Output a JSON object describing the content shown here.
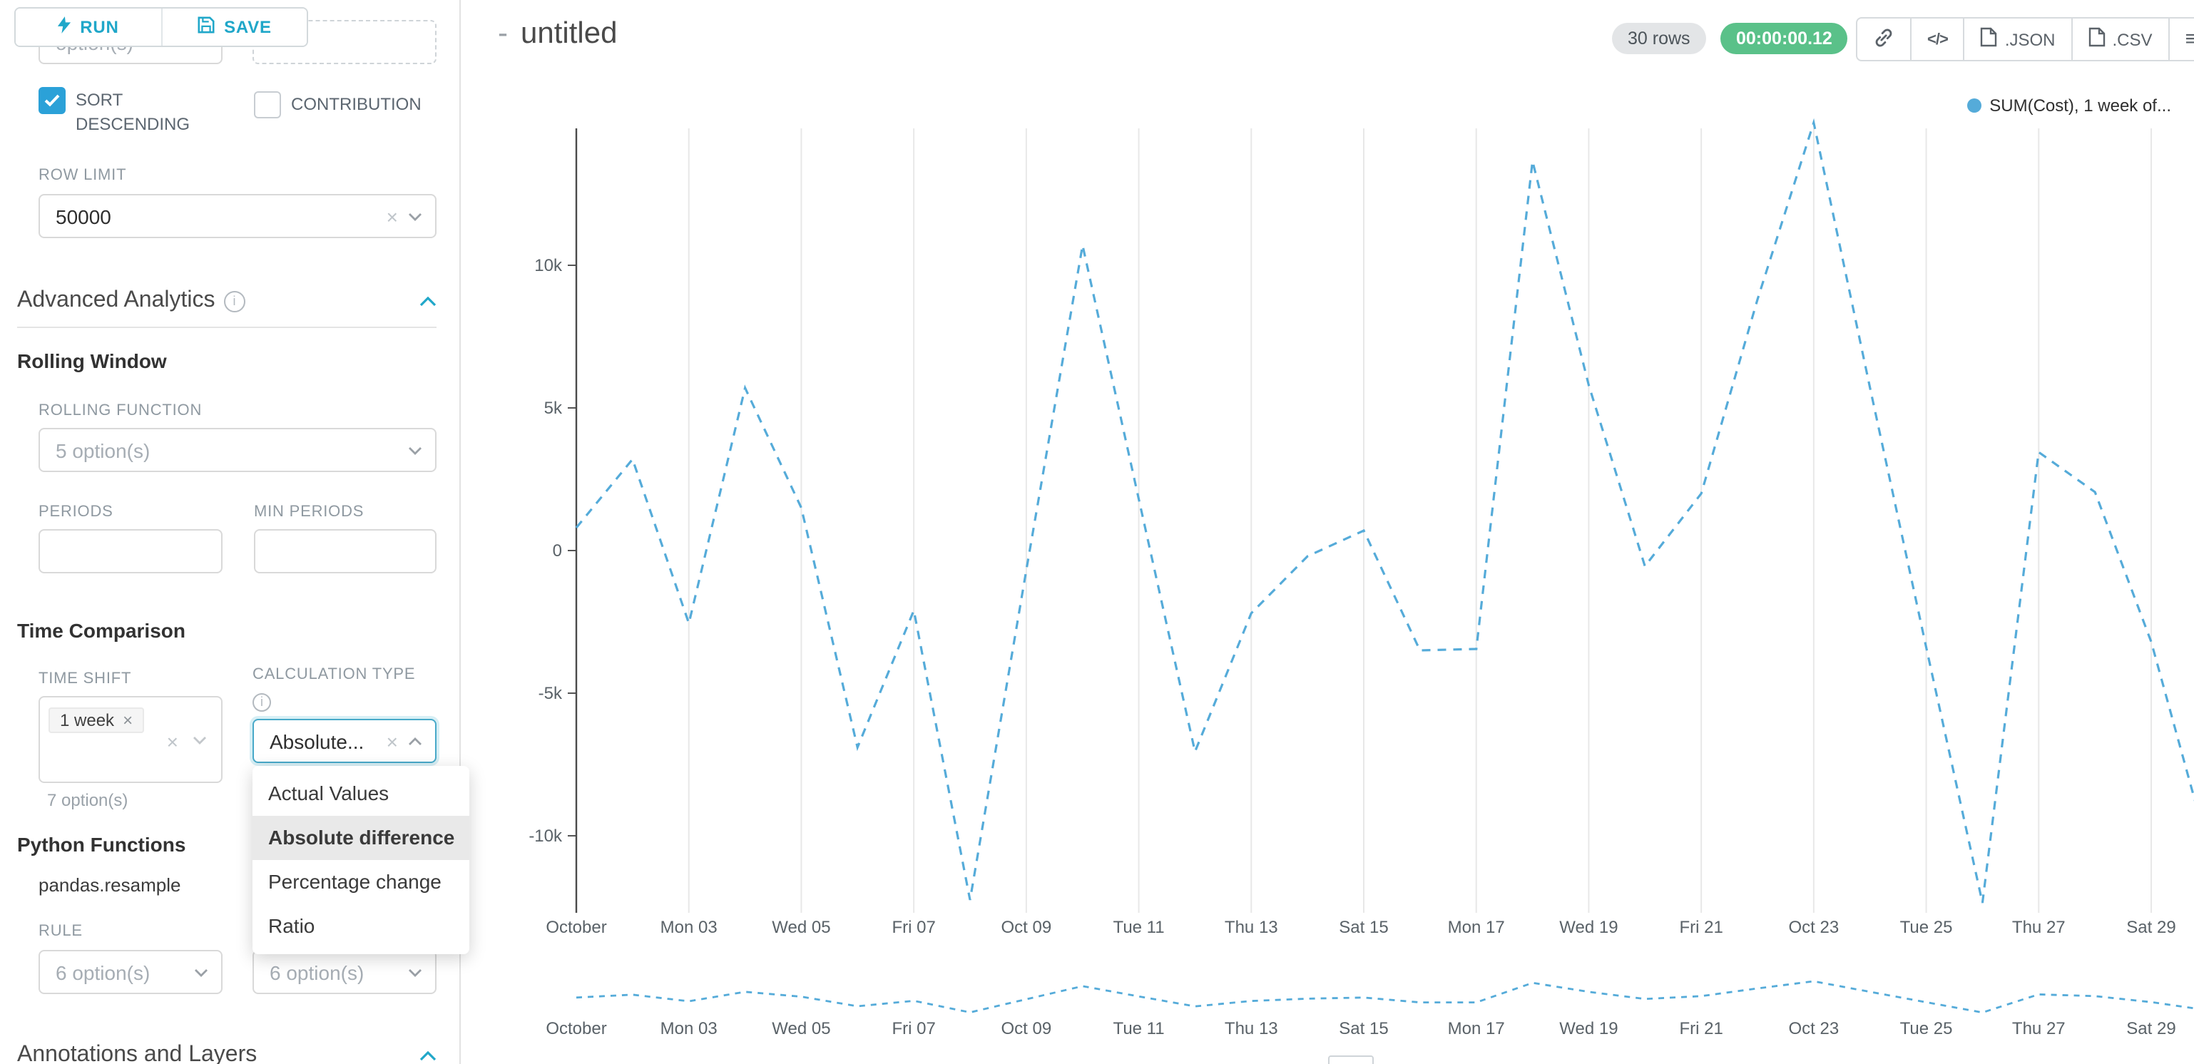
{
  "icons": {
    "menu": "≡",
    "code": "</>",
    "clear": "×"
  },
  "header": {
    "run": "RUN",
    "save": "SAVE"
  },
  "sidebar": {
    "clipped_option_text": "option(s)",
    "sort_descending_label": "SORT DESCENDING",
    "sort_descending_checked": true,
    "contribution_label": "CONTRIBUTION",
    "contribution_checked": false,
    "row_limit_label": "ROW LIMIT",
    "row_limit_value": "50000",
    "advanced_analytics_title": "Advanced Analytics",
    "rolling_window_title": "Rolling Window",
    "rolling_function_label": "ROLLING FUNCTION",
    "rolling_function_placeholder": "5 option(s)",
    "periods_label": "PERIODS",
    "min_periods_label": "MIN PERIODS",
    "time_comparison_title": "Time Comparison",
    "time_shift_label": "TIME SHIFT",
    "time_shift_tag": "1 week",
    "time_shift_hint": "7 option(s)",
    "calculation_type_label": "CALCULATION TYPE",
    "calculation_type_value": "Absolute...",
    "calculation_options": [
      "Actual Values",
      "Absolute difference",
      "Percentage change",
      "Ratio"
    ],
    "calculation_selected_index": 1,
    "python_functions_title": "Python Functions",
    "python_function_name": "pandas.resample",
    "rule_label": "RULE",
    "rule_placeholder": "6 option(s)",
    "method_placeholder": "6 option(s)",
    "annotations_title": "Annotations and Layers"
  },
  "main": {
    "title_dash": "-",
    "title": "untitled",
    "rows_badge": "30 rows",
    "duration_badge": "00:00:00.12",
    "export_json_label": ".JSON",
    "export_csv_label": ".CSV"
  },
  "chart_data": {
    "type": "line",
    "line_style": "dashed",
    "grid": "vertical",
    "legend_label": "SUM(Cost), 1 week of...",
    "legend_position": "top-right",
    "color": "#55ABD9",
    "x_tick_labels": [
      "October",
      "Mon 03",
      "Wed 05",
      "Fri 07",
      "Oct 09",
      "Tue 11",
      "Thu 13",
      "Sat 15",
      "Mon 17",
      "Wed 19",
      "Fri 21",
      "Oct 23",
      "Tue 25",
      "Thu 27",
      "Sat 29"
    ],
    "y_ticks": [
      {
        "label": "10k",
        "value": 10000
      },
      {
        "label": "5k",
        "value": 5000
      },
      {
        "label": "0",
        "value": 0
      },
      {
        "label": "-5k",
        "value": -5000
      },
      {
        "label": "-10k",
        "value": -10000
      }
    ],
    "ylim": [
      -13750,
      15500
    ],
    "xlabel": "",
    "ylabel": "",
    "series": [
      {
        "name": "SUM(Cost), 1 week offset",
        "color": "#55ABD9",
        "x": [
          "Oct 01",
          "Oct 02",
          "Oct 03",
          "Oct 04",
          "Oct 05",
          "Oct 06",
          "Oct 07",
          "Oct 08",
          "Oct 09",
          "Oct 10",
          "Oct 11",
          "Oct 12",
          "Oct 13",
          "Oct 14",
          "Oct 15",
          "Oct 16",
          "Oct 17",
          "Oct 18",
          "Oct 19",
          "Oct 20",
          "Oct 21",
          "Oct 22",
          "Oct 23",
          "Oct 24",
          "Oct 25",
          "Oct 26",
          "Oct 27",
          "Oct 28",
          "Oct 29",
          "Oct 30"
        ],
        "values": [
          800,
          3200,
          -2550,
          5700,
          1500,
          -6900,
          -2100,
          -12250,
          -700,
          10700,
          1800,
          -7050,
          -2200,
          -200,
          700,
          -3500,
          -3450,
          13650,
          5800,
          -550,
          2000,
          8800,
          15000,
          5700,
          -3400,
          -12350,
          3450,
          2050,
          -3200,
          -10350
        ]
      }
    ],
    "mini_chart": {
      "present": true,
      "same_series": true
    }
  }
}
